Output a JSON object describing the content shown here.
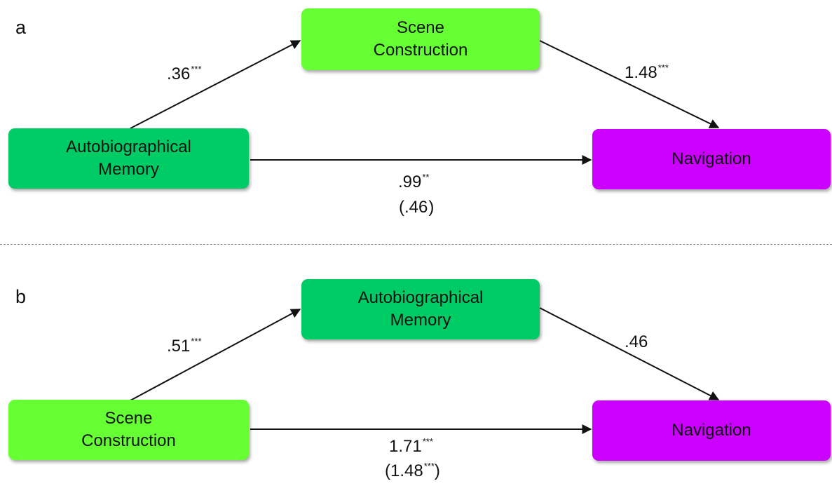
{
  "colors": {
    "scene_construction": "#66ff33",
    "autobiographical_memory": "#00cc66",
    "navigation": "#cc00ff",
    "arrow": "#111111",
    "divider": "#8a8a8a"
  },
  "panel_a": {
    "letter": "a",
    "top_box": {
      "line1": "Scene",
      "line2": "Construction"
    },
    "left_box": {
      "line1": "Autobiographical",
      "line2": "Memory"
    },
    "right_box": {
      "label": "Navigation"
    },
    "path_left": {
      "value": ".36",
      "stars": "***"
    },
    "path_right": {
      "value": "1.48",
      "stars": "***"
    },
    "path_direct": {
      "value": ".99",
      "stars": "**",
      "indirect_open": "(",
      "indirect_value": ".46",
      "indirect_stars": "",
      "indirect_close": ")"
    }
  },
  "panel_b": {
    "letter": "b",
    "top_box": {
      "line1": "Autobiographical",
      "line2": "Memory"
    },
    "left_box": {
      "line1": "Scene",
      "line2": "Construction"
    },
    "right_box": {
      "label": "Navigation"
    },
    "path_left": {
      "value": ".51",
      "stars": "***"
    },
    "path_right": {
      "value": ".46",
      "stars": ""
    },
    "path_direct": {
      "value": "1.71",
      "stars": "***",
      "indirect_open": "(",
      "indirect_value": "1.48",
      "indirect_stars": "***",
      "indirect_close": ")"
    }
  }
}
